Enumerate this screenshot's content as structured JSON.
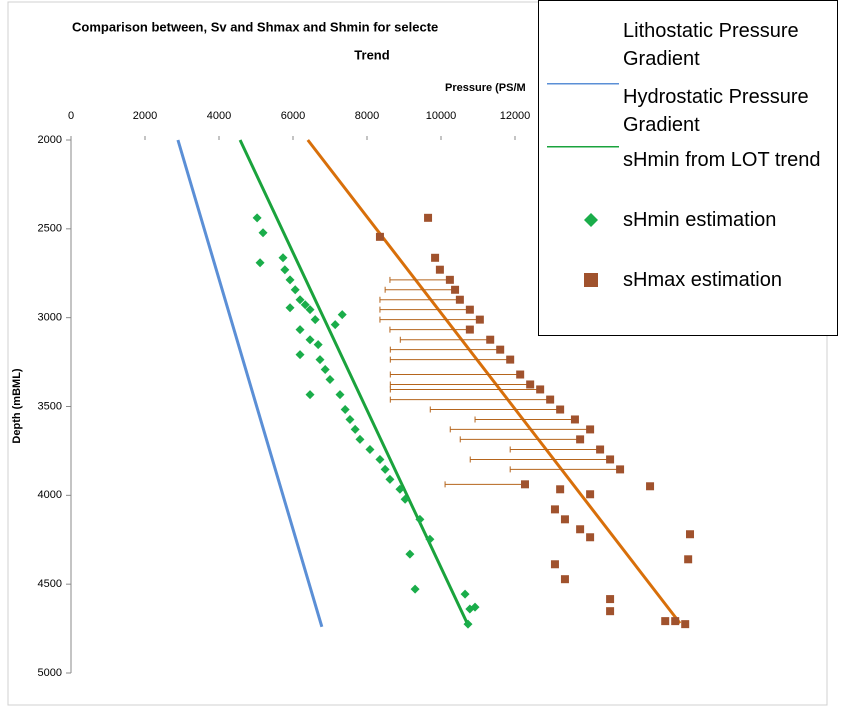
{
  "chart_data": {
    "type": "scatter",
    "title_lines": [
      "Comparison between, Sv and Shmax and Shmin for selecte",
      "Trend"
    ],
    "x_label": "Pressure (PS/M",
    "y_label": "Depth (mBML)",
    "xlim": [
      0,
      20000
    ],
    "xticks": [
      0,
      2000,
      4000,
      6000,
      8000,
      10000,
      12000
    ],
    "ylim": [
      2000,
      5000
    ],
    "yticks": [
      2000,
      2500,
      3000,
      3500,
      4000,
      4500,
      5000
    ],
    "y_inverted": true,
    "x_axis_position": "top",
    "series": [
      {
        "name": "Lithostatic Pressure Gradient",
        "kind": "line",
        "color": "#d86f0a",
        "x": [
          6400,
          16460
        ],
        "y": [
          2000,
          4720
        ]
      },
      {
        "name": "Hydrostatic Pressure Gradient",
        "kind": "line",
        "color": "#5b8fd6",
        "x": [
          2890,
          6780
        ],
        "y": [
          2000,
          4740
        ]
      },
      {
        "name": "sHmin from LOT trend",
        "kind": "line",
        "color": "#1aa33c",
        "x": [
          4570,
          10730
        ],
        "y": [
          2000,
          4730
        ]
      },
      {
        "name": "sHmin estimation",
        "kind": "markers",
        "marker": "diamond",
        "color": "#1aad4a",
        "x": [
          5030,
          5190,
          5730,
          5780,
          5920,
          6060,
          6190,
          6330,
          6460,
          6600,
          6190,
          6680,
          6730,
          6870,
          7000,
          7270,
          7410,
          7540,
          7680,
          7810,
          8080,
          8350,
          8490,
          8620,
          8890,
          9030,
          9430,
          9700,
          9160,
          9300,
          10650,
          10780,
          10730,
          10920,
          5110,
          5920,
          6460,
          7140,
          7330,
          6190,
          6460
        ],
        "y": [
          2438,
          2522,
          2663,
          2730,
          2787,
          2843,
          2899,
          2927,
          2955,
          3011,
          3067,
          3152,
          3236,
          3292,
          3348,
          3433,
          3517,
          3573,
          3629,
          3685,
          3742,
          3798,
          3854,
          3910,
          3966,
          4022,
          4135,
          4247,
          4331,
          4528,
          4556,
          4640,
          4725,
          4629,
          2691,
          2944,
          3124,
          3039,
          2983,
          3208,
          3433
        ]
      },
      {
        "name": "sHmax estimation",
        "kind": "markers",
        "marker": "square",
        "color": "#a0522d",
        "error_color": "#b5651d",
        "x": [
          9650,
          8350,
          9840,
          9970,
          10240,
          10380,
          10510,
          10780,
          11050,
          10780,
          11330,
          11600,
          11870,
          12140,
          12410,
          12680,
          12950,
          13220,
          13620,
          14030,
          13760,
          14300,
          14570,
          14840,
          12270,
          13220,
          14030,
          13080,
          13350,
          13760,
          14030,
          13080,
          13350,
          14570,
          14570,
          15650,
          16680,
          16730,
          16600,
          16330,
          16060,
          14840,
          15380,
          14300
        ],
        "y": [
          2438,
          2545,
          2663,
          2730,
          2787,
          2843,
          2899,
          2955,
          3011,
          3067,
          3124,
          3180,
          3236,
          3320,
          3376,
          3404,
          3461,
          3517,
          3573,
          3629,
          3685,
          3742,
          3798,
          3854,
          3938,
          3966,
          3994,
          4079,
          4135,
          4191,
          4236,
          4388,
          4472,
          4584,
          4652,
          3949,
          4360,
          4219,
          4725,
          4708,
          4708,
          3039,
          2955,
          2815
        ],
        "xerr_minus": [
          null,
          null,
          null,
          null,
          1620,
          1890,
          2160,
          2430,
          2700,
          2160,
          2430,
          2970,
          3240,
          3510,
          3780,
          4050,
          4320,
          3510,
          2700,
          3780,
          3240,
          2430,
          3780,
          2970,
          2160,
          null,
          null,
          null,
          null,
          null,
          null,
          null,
          null,
          null,
          null,
          null,
          null,
          null,
          null,
          null,
          null,
          null,
          null,
          null
        ]
      }
    ],
    "legend_position": "upper right"
  }
}
